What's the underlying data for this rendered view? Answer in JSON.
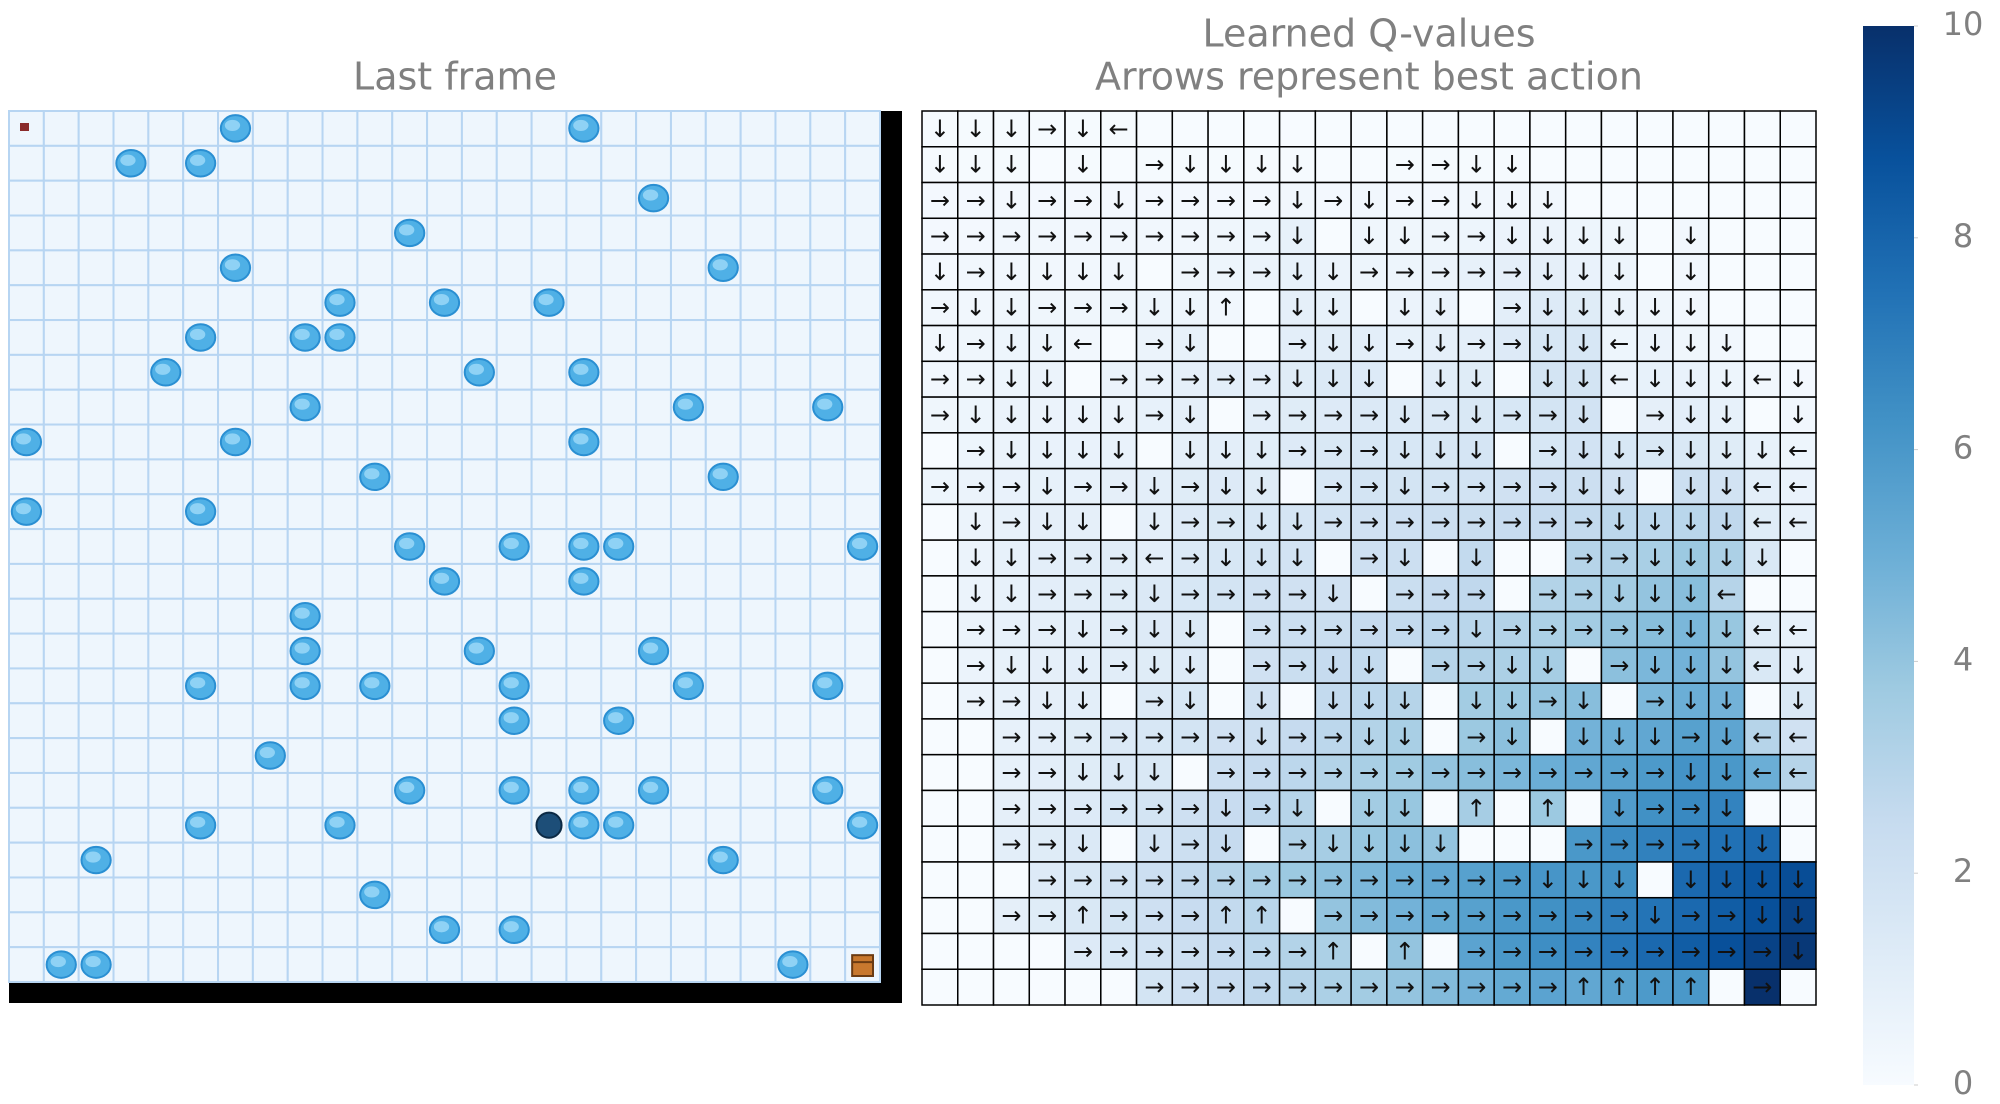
{
  "frame": {
    "title": "Last frame",
    "rows": 25,
    "cols": 25,
    "start": [
      0,
      0
    ],
    "agent": [
      20,
      15
    ],
    "goal": [
      24,
      24
    ],
    "holes": [
      [
        0,
        6
      ],
      [
        0,
        16
      ],
      [
        1,
        3
      ],
      [
        1,
        5
      ],
      [
        2,
        18
      ],
      [
        3,
        11
      ],
      [
        4,
        6
      ],
      [
        4,
        20
      ],
      [
        5,
        9
      ],
      [
        5,
        12
      ],
      [
        5,
        15
      ],
      [
        6,
        5
      ],
      [
        6,
        8
      ],
      [
        6,
        9
      ],
      [
        7,
        4
      ],
      [
        7,
        13
      ],
      [
        7,
        16
      ],
      [
        8,
        8
      ],
      [
        8,
        19
      ],
      [
        8,
        23
      ],
      [
        9,
        0
      ],
      [
        9,
        6
      ],
      [
        9,
        16
      ],
      [
        10,
        10
      ],
      [
        10,
        20
      ],
      [
        11,
        0
      ],
      [
        11,
        5
      ],
      [
        12,
        11
      ],
      [
        12,
        14
      ],
      [
        12,
        16
      ],
      [
        12,
        17
      ],
      [
        12,
        24
      ],
      [
        13,
        12
      ],
      [
        13,
        16
      ],
      [
        14,
        8
      ],
      [
        15,
        8
      ],
      [
        15,
        13
      ],
      [
        15,
        18
      ],
      [
        16,
        5
      ],
      [
        16,
        8
      ],
      [
        16,
        10
      ],
      [
        16,
        14
      ],
      [
        16,
        19
      ],
      [
        16,
        23
      ],
      [
        17,
        14
      ],
      [
        17,
        17
      ],
      [
        18,
        7
      ],
      [
        19,
        11
      ],
      [
        19,
        14
      ],
      [
        19,
        16
      ],
      [
        19,
        18
      ],
      [
        19,
        23
      ],
      [
        20,
        5
      ],
      [
        20,
        9
      ],
      [
        20,
        16
      ],
      [
        20,
        17
      ],
      [
        20,
        24
      ],
      [
        21,
        2
      ],
      [
        21,
        20
      ],
      [
        22,
        10
      ],
      [
        23,
        12
      ],
      [
        23,
        14
      ],
      [
        24,
        1
      ],
      [
        24,
        2
      ],
      [
        24,
        22
      ]
    ]
  },
  "chart_data": {
    "type": "heatmap",
    "title": "Learned Q-values",
    "subtitle": "Arrows represent best action",
    "colormap": "Blues",
    "zlim": [
      0,
      10
    ],
    "zticks": [
      0,
      2,
      4,
      6,
      8,
      10
    ],
    "values": [
      [
        0.1,
        0.1,
        0.1,
        0.1,
        0.1,
        0.1,
        0,
        0,
        0,
        0,
        0,
        0,
        0,
        0,
        0,
        0,
        0,
        0,
        0,
        0,
        0,
        0,
        0,
        0,
        0
      ],
      [
        0.1,
        0.1,
        0.1,
        0,
        0.1,
        0,
        0.1,
        0.1,
        0.1,
        0.1,
        0.1,
        0,
        0,
        0.1,
        0.1,
        0.1,
        0.1,
        0,
        0,
        0,
        0,
        0,
        0,
        0,
        0
      ],
      [
        0.2,
        0.2,
        0.2,
        0.2,
        0.2,
        0.2,
        0.2,
        0.2,
        0.2,
        0.2,
        0.3,
        0.2,
        0.3,
        0.2,
        0.2,
        0.3,
        0.3,
        0.3,
        0,
        0,
        0,
        0,
        0,
        0,
        0
      ],
      [
        0.2,
        0.2,
        0.3,
        0.3,
        0.3,
        0.3,
        0.3,
        0.3,
        0.4,
        0.5,
        0.8,
        0,
        0.4,
        0.4,
        0.4,
        0.5,
        0.6,
        0.6,
        0.5,
        0.4,
        0,
        0.3,
        0,
        0,
        0
      ],
      [
        0.2,
        0.3,
        0.3,
        0.3,
        0.3,
        0.3,
        0,
        0.4,
        0.5,
        0.6,
        0.8,
        0.6,
        0.5,
        0.5,
        0.6,
        0.8,
        0.9,
        0.9,
        0.7,
        0.5,
        0,
        0.3,
        0,
        0,
        0
      ],
      [
        0.3,
        0.3,
        0.4,
        0.4,
        0.4,
        0.4,
        0.5,
        0.5,
        0.3,
        0,
        0.9,
        0.8,
        0,
        0.6,
        0.7,
        0,
        1.0,
        1.3,
        1.2,
        0.6,
        0.4,
        0.3,
        0,
        0,
        0
      ],
      [
        0.3,
        0.4,
        0.5,
        0.5,
        0.3,
        0,
        0.6,
        0.8,
        0,
        0,
        1.0,
        1.1,
        1.0,
        0.8,
        0.9,
        1.0,
        1.3,
        1.6,
        1.6,
        0.5,
        0.6,
        0.4,
        0.3,
        0,
        0
      ],
      [
        0.3,
        0.4,
        0.5,
        0.6,
        0,
        0.6,
        0.7,
        0.9,
        1.0,
        1.0,
        1.2,
        1.4,
        1.3,
        0,
        1.1,
        1.2,
        0,
        1.8,
        1.8,
        0.6,
        0.8,
        0.7,
        0.5,
        0.3,
        0.2
      ],
      [
        0.4,
        0.5,
        0.6,
        0.6,
        0.6,
        0.6,
        0.8,
        0.9,
        0,
        1.0,
        1.2,
        1.3,
        1.4,
        1.4,
        1.4,
        1.5,
        1.6,
        1.8,
        1.9,
        0,
        0.9,
        1.0,
        0.8,
        0,
        0.3
      ],
      [
        0,
        0.5,
        0.6,
        0.7,
        0.7,
        0.7,
        0,
        0.9,
        1.0,
        1.1,
        1.3,
        1.5,
        1.6,
        1.6,
        1.6,
        1.7,
        0,
        1.6,
        1.9,
        1.6,
        1.5,
        1.5,
        1.2,
        0.8,
        0.5
      ],
      [
        0.5,
        0.6,
        0.7,
        0.8,
        0.8,
        0.9,
        1.0,
        1.2,
        1.3,
        1.2,
        0,
        1.6,
        1.8,
        1.8,
        1.8,
        1.9,
        2.0,
        2.1,
        2.2,
        2.0,
        0,
        2.2,
        1.9,
        1.0,
        0.7
      ],
      [
        0,
        0.6,
        0.8,
        0.9,
        0.9,
        0,
        1.0,
        1.3,
        1.5,
        1.6,
        1.7,
        1.9,
        2.0,
        2.1,
        2.2,
        2.3,
        2.4,
        2.5,
        2.6,
        2.8,
        2.8,
        2.9,
        2.7,
        1.2,
        0.8
      ],
      [
        0,
        0.6,
        0.8,
        1.0,
        1.1,
        1.1,
        1.0,
        1.4,
        1.6,
        1.8,
        1.9,
        0,
        2.1,
        2.2,
        0,
        2.6,
        0,
        0,
        3.0,
        3.2,
        3.4,
        3.8,
        3.3,
        1.5,
        0
      ],
      [
        0,
        0.6,
        0.8,
        1.0,
        1.1,
        1.2,
        1.4,
        1.6,
        1.8,
        2.0,
        2.0,
        2.0,
        0,
        2.3,
        2.5,
        2.7,
        0,
        3.1,
        3.3,
        3.6,
        4.0,
        4.3,
        3.0,
        0,
        0
      ],
      [
        0,
        0.6,
        0.8,
        0.9,
        1.0,
        1.1,
        1.3,
        1.4,
        0,
        2.0,
        2.2,
        2.3,
        2.5,
        2.6,
        2.8,
        2.9,
        3.1,
        3.3,
        3.6,
        4.0,
        4.3,
        4.6,
        3.9,
        1.2,
        0.8
      ],
      [
        0,
        0.6,
        0.8,
        0.9,
        1.0,
        1.1,
        1.2,
        1.3,
        0,
        2.0,
        2.3,
        2.5,
        2.6,
        0,
        3.0,
        3.2,
        3.3,
        3.5,
        0,
        4.2,
        4.6,
        4.8,
        4.0,
        1.5,
        1.0
      ],
      [
        0,
        0.6,
        0.8,
        0.9,
        1.0,
        0,
        1.4,
        1.6,
        0,
        2.0,
        0,
        2.6,
        2.8,
        3.0,
        0,
        3.6,
        3.8,
        4.0,
        4.3,
        0,
        4.6,
        5.0,
        4.8,
        0,
        1.5
      ],
      [
        0,
        0,
        0.8,
        1.0,
        1.2,
        1.4,
        1.6,
        1.8,
        2.0,
        2.2,
        2.5,
        2.8,
        3.1,
        3.4,
        0,
        3.8,
        4.2,
        0,
        4.8,
        5.0,
        5.3,
        5.6,
        5.4,
        3.0,
        2.0
      ],
      [
        0,
        0,
        0.8,
        1.0,
        1.2,
        1.4,
        1.5,
        0,
        2.2,
        2.5,
        2.8,
        3.1,
        3.4,
        3.7,
        4.0,
        4.3,
        4.6,
        5.0,
        5.3,
        5.6,
        5.9,
        6.2,
        6.0,
        5.0,
        3.0
      ],
      [
        0,
        0,
        0.9,
        1.1,
        1.3,
        1.6,
        1.8,
        2.1,
        2.4,
        2.7,
        3.0,
        0,
        3.6,
        3.9,
        0,
        3.5,
        0,
        3.8,
        0,
        5.8,
        6.3,
        6.6,
        6.8,
        0,
        0
      ],
      [
        0,
        0,
        1.0,
        1.2,
        1.4,
        0,
        1.9,
        2.2,
        2.5,
        0,
        3.2,
        3.5,
        3.9,
        4.2,
        4.0,
        0,
        0,
        0,
        6.0,
        6.5,
        6.9,
        7.2,
        7.5,
        7.8,
        0
      ],
      [
        0,
        0,
        0,
        1.3,
        1.6,
        1.9,
        2.2,
        2.6,
        3.0,
        3.4,
        3.8,
        4.2,
        4.6,
        5.0,
        5.3,
        5.6,
        5.9,
        6.1,
        6.0,
        6.3,
        0,
        7.8,
        8.2,
        8.6,
        8.9
      ],
      [
        0,
        0,
        0.9,
        1.2,
        1.5,
        1.8,
        2.1,
        2.4,
        2.6,
        2.9,
        0,
        4.0,
        4.4,
        4.8,
        5.2,
        5.6,
        6.0,
        6.3,
        6.6,
        7.0,
        7.4,
        7.8,
        8.3,
        8.8,
        9.3
      ],
      [
        0,
        0,
        0,
        0,
        1.3,
        1.6,
        1.9,
        2.2,
        2.5,
        2.8,
        3.1,
        3.3,
        0,
        4.0,
        0,
        5.5,
        6.0,
        6.4,
        6.8,
        7.3,
        7.8,
        8.3,
        8.8,
        9.3,
        9.7
      ],
      [
        0,
        0,
        0,
        0,
        0,
        0,
        1.8,
        2.1,
        2.4,
        2.7,
        3.0,
        3.3,
        3.6,
        4.0,
        4.4,
        4.8,
        5.2,
        5.5,
        5.3,
        5.6,
        5.9,
        6.0,
        0,
        10,
        0
      ]
    ],
    "arrows": [
      [
        "↓",
        "↓",
        "↓",
        "→",
        "↓",
        "←",
        null,
        null,
        null,
        null,
        null,
        null,
        null,
        null,
        null,
        null,
        null,
        null,
        null,
        null,
        null,
        null,
        null,
        null,
        null
      ],
      [
        "↓",
        "↓",
        "↓",
        null,
        "↓",
        null,
        "→",
        "↓",
        "↓",
        "↓",
        "↓",
        null,
        null,
        "→",
        "→",
        "↓",
        "↓",
        null,
        null,
        null,
        null,
        null,
        null,
        null,
        null
      ],
      [
        "→",
        "→",
        "↓",
        "→",
        "→",
        "↓",
        "→",
        "→",
        "→",
        "→",
        "↓",
        "→",
        "↓",
        "→",
        "→",
        "↓",
        "↓",
        "↓",
        null,
        null,
        null,
        null,
        null,
        null,
        null
      ],
      [
        "→",
        "→",
        "→",
        "→",
        "→",
        "→",
        "→",
        "→",
        "→",
        "→",
        "↓",
        null,
        "↓",
        "↓",
        "→",
        "→",
        "↓",
        "↓",
        "↓",
        "↓",
        null,
        "↓",
        null,
        null,
        null
      ],
      [
        "↓",
        "→",
        "↓",
        "↓",
        "↓",
        "↓",
        null,
        "→",
        "→",
        "→",
        "↓",
        "↓",
        "→",
        "→",
        "→",
        "→",
        "→",
        "↓",
        "↓",
        "↓",
        null,
        "↓",
        null,
        null,
        null
      ],
      [
        "→",
        "↓",
        "↓",
        "→",
        "→",
        "→",
        "↓",
        "↓",
        "↑",
        null,
        "↓",
        "↓",
        null,
        "↓",
        "↓",
        null,
        "→",
        "↓",
        "↓",
        "↓",
        "↓",
        "↓",
        null,
        null,
        null
      ],
      [
        "↓",
        "→",
        "↓",
        "↓",
        "←",
        null,
        "→",
        "↓",
        null,
        null,
        "→",
        "↓",
        "↓",
        "→",
        "↓",
        "→",
        "→",
        "↓",
        "↓",
        "←",
        "↓",
        "↓",
        "↓",
        null,
        null
      ],
      [
        "→",
        "→",
        "↓",
        "↓",
        null,
        "→",
        "→",
        "→",
        "→",
        "→",
        "↓",
        "↓",
        "↓",
        null,
        "↓",
        "↓",
        null,
        "↓",
        "↓",
        "←",
        "↓",
        "↓",
        "↓",
        "←",
        "↓"
      ],
      [
        "→",
        "↓",
        "↓",
        "↓",
        "↓",
        "↓",
        "→",
        "↓",
        null,
        "→",
        "→",
        "→",
        "→",
        "↓",
        "→",
        "↓",
        "→",
        "→",
        "↓",
        null,
        "→",
        "↓",
        "↓",
        null,
        "↓"
      ],
      [
        null,
        "→",
        "↓",
        "↓",
        "↓",
        "↓",
        null,
        "↓",
        "↓",
        "↓",
        "→",
        "→",
        "→",
        "↓",
        "↓",
        "↓",
        null,
        "→",
        "↓",
        "↓",
        "→",
        "↓",
        "↓",
        "↓",
        "←"
      ],
      [
        "→",
        "→",
        "→",
        "↓",
        "→",
        "→",
        "↓",
        "→",
        "↓",
        "↓",
        null,
        "→",
        "→",
        "↓",
        "→",
        "→",
        "→",
        "→",
        "↓",
        "↓",
        null,
        "↓",
        "↓",
        "←",
        "←"
      ],
      [
        null,
        "↓",
        "→",
        "↓",
        "↓",
        null,
        "↓",
        "→",
        "→",
        "↓",
        "↓",
        "→",
        "→",
        "→",
        "→",
        "→",
        "→",
        "→",
        "→",
        "↓",
        "↓",
        "↓",
        "↓",
        "←",
        "←"
      ],
      [
        null,
        "↓",
        "↓",
        "→",
        "→",
        "→",
        "←",
        "→",
        "↓",
        "↓",
        "↓",
        null,
        "→",
        "↓",
        null,
        "↓",
        null,
        null,
        "→",
        "→",
        "↓",
        "↓",
        "↓",
        "↓",
        null
      ],
      [
        null,
        "↓",
        "↓",
        "→",
        "→",
        "→",
        "↓",
        "→",
        "→",
        "→",
        "→",
        "↓",
        null,
        "→",
        "→",
        "→",
        null,
        "→",
        "→",
        "↓",
        "↓",
        "↓",
        "←",
        null,
        null
      ],
      [
        null,
        "→",
        "→",
        "→",
        "↓",
        "→",
        "↓",
        "↓",
        null,
        "→",
        "→",
        "→",
        "→",
        "→",
        "→",
        "↓",
        "→",
        "→",
        "→",
        "→",
        "→",
        "↓",
        "↓",
        "←",
        "←"
      ],
      [
        null,
        "→",
        "↓",
        "↓",
        "↓",
        "→",
        "↓",
        "↓",
        null,
        "→",
        "→",
        "↓",
        "↓",
        null,
        "→",
        "→",
        "↓",
        "↓",
        null,
        "→",
        "↓",
        "↓",
        "↓",
        "←",
        "↓"
      ],
      [
        null,
        "→",
        "→",
        "↓",
        "↓",
        null,
        "→",
        "↓",
        null,
        "↓",
        null,
        "↓",
        "↓",
        "↓",
        null,
        "↓",
        "↓",
        "→",
        "↓",
        null,
        "→",
        "↓",
        "↓",
        null,
        "↓"
      ],
      [
        null,
        null,
        "→",
        "→",
        "→",
        "→",
        "→",
        "→",
        "→",
        "↓",
        "→",
        "→",
        "↓",
        "↓",
        null,
        "→",
        "↓",
        null,
        "↓",
        "↓",
        "↓",
        "→",
        "↓",
        "←",
        "←"
      ],
      [
        null,
        null,
        "→",
        "→",
        "↓",
        "↓",
        "↓",
        null,
        "→",
        "→",
        "→",
        "→",
        "→",
        "→",
        "→",
        "→",
        "→",
        "→",
        "→",
        "→",
        "→",
        "↓",
        "↓",
        "←",
        "←"
      ],
      [
        null,
        null,
        "→",
        "→",
        "→",
        "→",
        "→",
        "→",
        "↓",
        "→",
        "↓",
        null,
        "↓",
        "↓",
        null,
        "↑",
        null,
        "↑",
        null,
        "↓",
        "→",
        "→",
        "↓",
        null,
        null
      ],
      [
        null,
        null,
        "→",
        "→",
        "↓",
        null,
        "↓",
        "→",
        "↓",
        null,
        "→",
        "↓",
        "↓",
        "↓",
        "↓",
        null,
        null,
        null,
        "→",
        "→",
        "→",
        "→",
        "↓",
        "↓",
        null
      ],
      [
        null,
        null,
        null,
        "→",
        "→",
        "→",
        "→",
        "→",
        "→",
        "→",
        "→",
        "→",
        "→",
        "→",
        "→",
        "→",
        "→",
        "↓",
        "↓",
        "↓",
        null,
        "↓",
        "↓",
        "↓",
        "↓"
      ],
      [
        null,
        null,
        "→",
        "→",
        "↑",
        "→",
        "→",
        "→",
        "↑",
        "↑",
        null,
        "→",
        "→",
        "→",
        "→",
        "→",
        "→",
        "→",
        "→",
        "→",
        "↓",
        "→",
        "→",
        "↓",
        "↓"
      ],
      [
        null,
        null,
        null,
        null,
        "→",
        "→",
        "→",
        "→",
        "→",
        "→",
        "→",
        "↑",
        null,
        "↑",
        null,
        "→",
        "→",
        "→",
        "→",
        "→",
        "→",
        "→",
        "→",
        "→",
        "↓"
      ],
      [
        null,
        null,
        null,
        null,
        null,
        null,
        "→",
        "→",
        "→",
        "→",
        "→",
        "→",
        "→",
        "→",
        "→",
        "→",
        "→",
        "→",
        "↑",
        "↑",
        "↑",
        "↑",
        null,
        "→",
        null
      ]
    ]
  }
}
